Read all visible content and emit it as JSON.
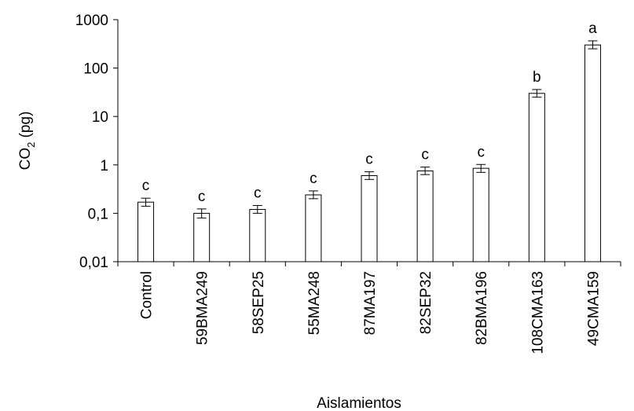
{
  "chart_data": {
    "type": "bar",
    "xlabel": "Aislamientos",
    "ylabel": {
      "base": "CO",
      "sub": "2",
      "unit": " (pg)"
    },
    "yscale": "log",
    "ylim": [
      0.01,
      1000
    ],
    "yticks": [
      {
        "value": 0.01,
        "label": "0,01"
      },
      {
        "value": 0.1,
        "label": "0,1"
      },
      {
        "value": 1,
        "label": "1"
      },
      {
        "value": 10,
        "label": "10"
      },
      {
        "value": 100,
        "label": "100"
      },
      {
        "value": 1000,
        "label": "1000"
      }
    ],
    "grid": false,
    "categories": [
      "Control",
      "59BMA249",
      "58SEP25",
      "55MA248",
      "87MA197",
      "82SEP32",
      "82BMA196",
      "108CMA163",
      "49CMA159"
    ],
    "values": [
      0.17,
      0.1,
      0.12,
      0.24,
      0.6,
      0.75,
      0.85,
      30,
      300
    ],
    "error_low": [
      0.14,
      0.08,
      0.1,
      0.2,
      0.5,
      0.63,
      0.7,
      25,
      250
    ],
    "error_high": [
      0.205,
      0.123,
      0.145,
      0.29,
      0.72,
      0.9,
      1.02,
      36,
      365
    ],
    "significance": [
      "c",
      "c",
      "c",
      "c",
      "c",
      "c",
      "c",
      "b",
      "a"
    ],
    "colors": {
      "bar_fill": "#ffffff",
      "bar_stroke": "#000000",
      "axis": "#000000"
    }
  }
}
